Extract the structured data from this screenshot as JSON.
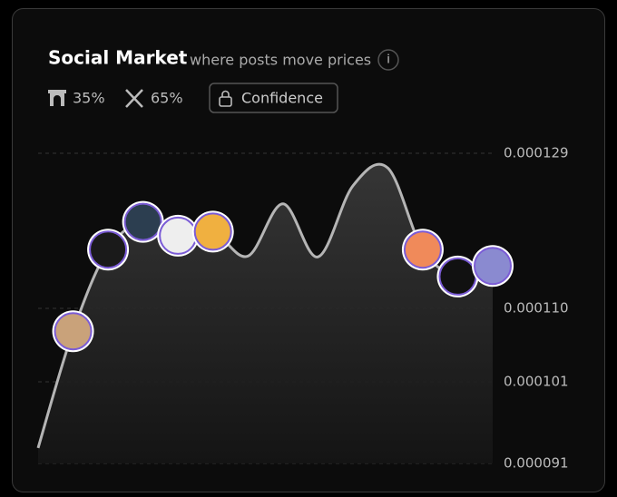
{
  "header": {
    "title": "Social Market",
    "subtitle": "where posts move prices",
    "info": "i",
    "sources": [
      "35%",
      "65%"
    ],
    "button": "Confidence"
  },
  "chart_data": {
    "type": "line",
    "values": [
      9.29e-05,
      0.0001072,
      0.0001172,
      0.0001206,
      0.0001189,
      0.0001194,
      0.0001164,
      0.0001228,
      0.0001163,
      0.000125,
      0.0001272,
      0.0001172,
      0.0001139,
      0.0001152
    ],
    "color": "#b5b5b5",
    "ylim": [
      9.1e-05,
      0.000129
    ],
    "yticks": [
      0.000129,
      {
        "value": 0.00011,
        "label": "0.000110"
      },
      0.000101,
      9.1e-05
    ],
    "grid": true
  }
}
